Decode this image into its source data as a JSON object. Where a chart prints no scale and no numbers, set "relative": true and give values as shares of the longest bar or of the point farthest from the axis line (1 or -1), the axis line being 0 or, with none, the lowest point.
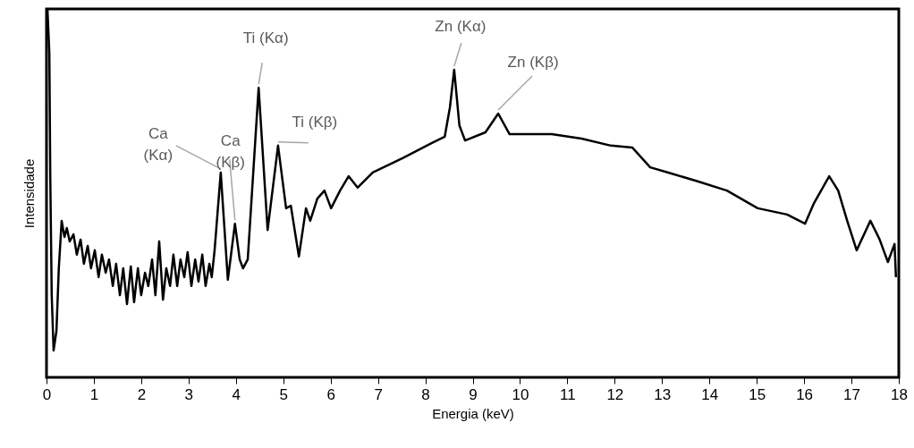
{
  "chart_data": {
    "type": "line",
    "relative": true,
    "xlabel": "Energia (keV)",
    "ylabel": "Intensidade",
    "xlim": [
      0,
      18
    ],
    "xticks": [
      0,
      1,
      2,
      3,
      4,
      5,
      6,
      7,
      8,
      9,
      10,
      11,
      12,
      13,
      14,
      15,
      16,
      17,
      18
    ],
    "series": [
      {
        "color": "#000000",
        "x": [
          0.02,
          0.06,
          0.08,
          0.11,
          0.15,
          0.21,
          0.26,
          0.32,
          0.38,
          0.43,
          0.49,
          0.57,
          0.64,
          0.72,
          0.79,
          0.87,
          0.94,
          1.02,
          1.1,
          1.17,
          1.25,
          1.32,
          1.4,
          1.47,
          1.55,
          1.62,
          1.7,
          1.78,
          1.85,
          1.93,
          2.0,
          2.08,
          2.15,
          2.23,
          2.3,
          2.38,
          2.46,
          2.53,
          2.61,
          2.68,
          2.76,
          2.83,
          2.91,
          2.98,
          3.06,
          3.14,
          3.21,
          3.29,
          3.36,
          3.44,
          3.49,
          3.55,
          3.68,
          3.83,
          3.98,
          4.08,
          4.15,
          4.25,
          4.48,
          4.67,
          4.89,
          5.06,
          5.16,
          5.33,
          5.48,
          5.57,
          5.72,
          5.87,
          6.01,
          6.2,
          6.38,
          6.57,
          6.89,
          7.52,
          8.14,
          8.41,
          8.52,
          8.61,
          8.72,
          8.84,
          9.27,
          9.54,
          9.78,
          10.67,
          11.3,
          11.92,
          12.37,
          12.75,
          13.13,
          13.75,
          14.37,
          15.02,
          15.64,
          16.02,
          16.21,
          16.53,
          16.72,
          16.91,
          17.11,
          17.4,
          17.59,
          17.77,
          17.91,
          17.94
        ],
        "values": [
          1.0,
          0.879,
          0.539,
          0.223,
          0.073,
          0.126,
          0.296,
          0.425,
          0.381,
          0.405,
          0.369,
          0.388,
          0.333,
          0.374,
          0.308,
          0.357,
          0.296,
          0.345,
          0.272,
          0.333,
          0.284,
          0.32,
          0.248,
          0.308,
          0.223,
          0.296,
          0.199,
          0.301,
          0.204,
          0.296,
          0.223,
          0.284,
          0.248,
          0.32,
          0.223,
          0.369,
          0.211,
          0.296,
          0.248,
          0.333,
          0.248,
          0.32,
          0.272,
          0.34,
          0.248,
          0.32,
          0.26,
          0.333,
          0.248,
          0.308,
          0.272,
          0.345,
          0.556,
          0.265,
          0.417,
          0.32,
          0.296,
          0.32,
          0.786,
          0.4,
          0.629,
          0.459,
          0.466,
          0.328,
          0.459,
          0.425,
          0.485,
          0.507,
          0.459,
          0.507,
          0.546,
          0.515,
          0.556,
          0.595,
          0.636,
          0.653,
          0.733,
          0.835,
          0.684,
          0.643,
          0.665,
          0.716,
          0.66,
          0.66,
          0.648,
          0.629,
          0.624,
          0.57,
          0.556,
          0.532,
          0.507,
          0.459,
          0.442,
          0.417,
          0.473,
          0.546,
          0.507,
          0.425,
          0.345,
          0.425,
          0.376,
          0.313,
          0.362,
          0.272
        ]
      }
    ],
    "annotations": [
      {
        "text": "Ca (Kα)",
        "x": 3.68,
        "y": 0.556
      },
      {
        "text": "Ca (Kβ)",
        "x": 3.98,
        "y": 0.417
      },
      {
        "text": "Ti (Kα)",
        "x": 4.48,
        "y": 0.786
      },
      {
        "text": "Ti (Kβ)",
        "x": 4.89,
        "y": 0.629
      },
      {
        "text": "Zn (Kα)",
        "x": 8.61,
        "y": 0.835
      },
      {
        "text": "Zn (Kβ)",
        "x": 9.54,
        "y": 0.716
      }
    ]
  }
}
